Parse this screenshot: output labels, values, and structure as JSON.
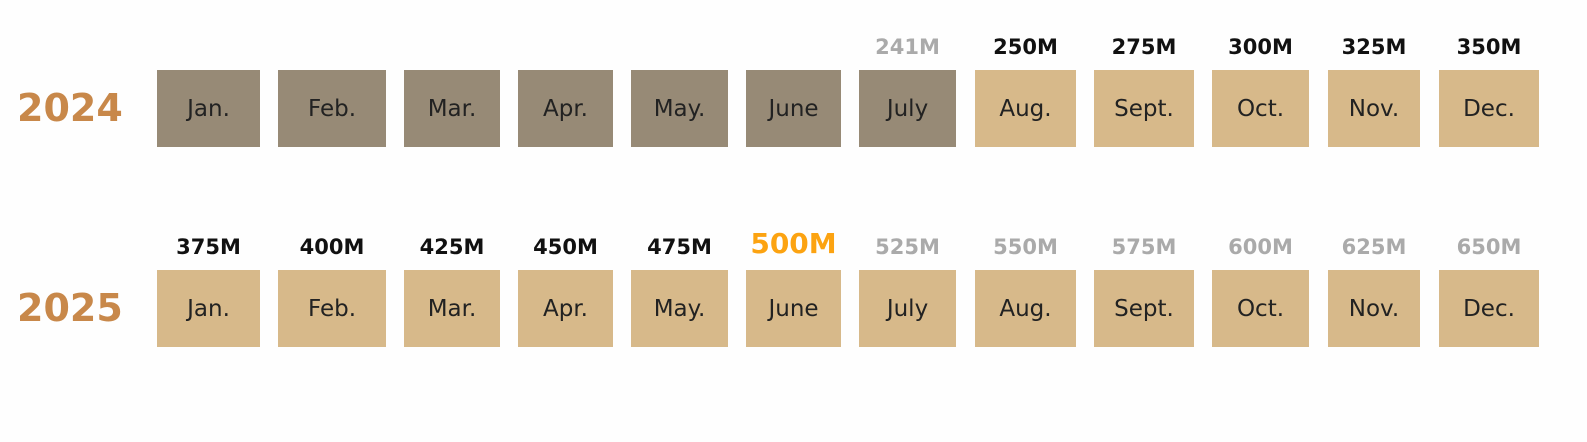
{
  "rows": [
    {
      "year": "2024",
      "months": [
        {
          "name": "Jan.",
          "status": "past"
        },
        {
          "name": "Feb.",
          "status": "past"
        },
        {
          "name": "Mar.",
          "status": "past"
        },
        {
          "name": "Apr.",
          "status": "past"
        },
        {
          "name": "May.",
          "status": "past"
        },
        {
          "name": "June",
          "status": "past"
        },
        {
          "name": "July",
          "status": "past",
          "target": "241M",
          "target_style": "muted"
        },
        {
          "name": "Aug.",
          "status": "future",
          "target": "250M",
          "target_style": "normal"
        },
        {
          "name": "Sept.",
          "status": "future",
          "target": "275M",
          "target_style": "normal"
        },
        {
          "name": "Oct.",
          "status": "future",
          "target": "300M",
          "target_style": "normal"
        },
        {
          "name": "Nov.",
          "status": "future",
          "target": "325M",
          "target_style": "normal"
        },
        {
          "name": "Dec.",
          "status": "future",
          "target": "350M",
          "target_style": "normal"
        }
      ]
    },
    {
      "year": "2025",
      "months": [
        {
          "name": "Jan.",
          "status": "future",
          "target": "375M",
          "target_style": "normal"
        },
        {
          "name": "Feb.",
          "status": "future",
          "target": "400M",
          "target_style": "normal"
        },
        {
          "name": "Mar.",
          "status": "future",
          "target": "425M",
          "target_style": "normal"
        },
        {
          "name": "Apr.",
          "status": "future",
          "target": "450M",
          "target_style": "normal"
        },
        {
          "name": "May.",
          "status": "future",
          "target": "475M",
          "target_style": "normal"
        },
        {
          "name": "June",
          "status": "future",
          "target": "500M",
          "target_style": "highlight"
        },
        {
          "name": "July",
          "status": "future",
          "target": "525M",
          "target_style": "muted"
        },
        {
          "name": "Aug.",
          "status": "future",
          "target": "550M",
          "target_style": "muted"
        },
        {
          "name": "Sept.",
          "status": "future",
          "target": "575M",
          "target_style": "muted"
        },
        {
          "name": "Oct.",
          "status": "future",
          "target": "600M",
          "target_style": "muted"
        },
        {
          "name": "Nov.",
          "status": "future",
          "target": "625M",
          "target_style": "muted"
        },
        {
          "name": "Dec.",
          "status": "future",
          "target": "650M",
          "target_style": "muted"
        }
      ]
    }
  ]
}
